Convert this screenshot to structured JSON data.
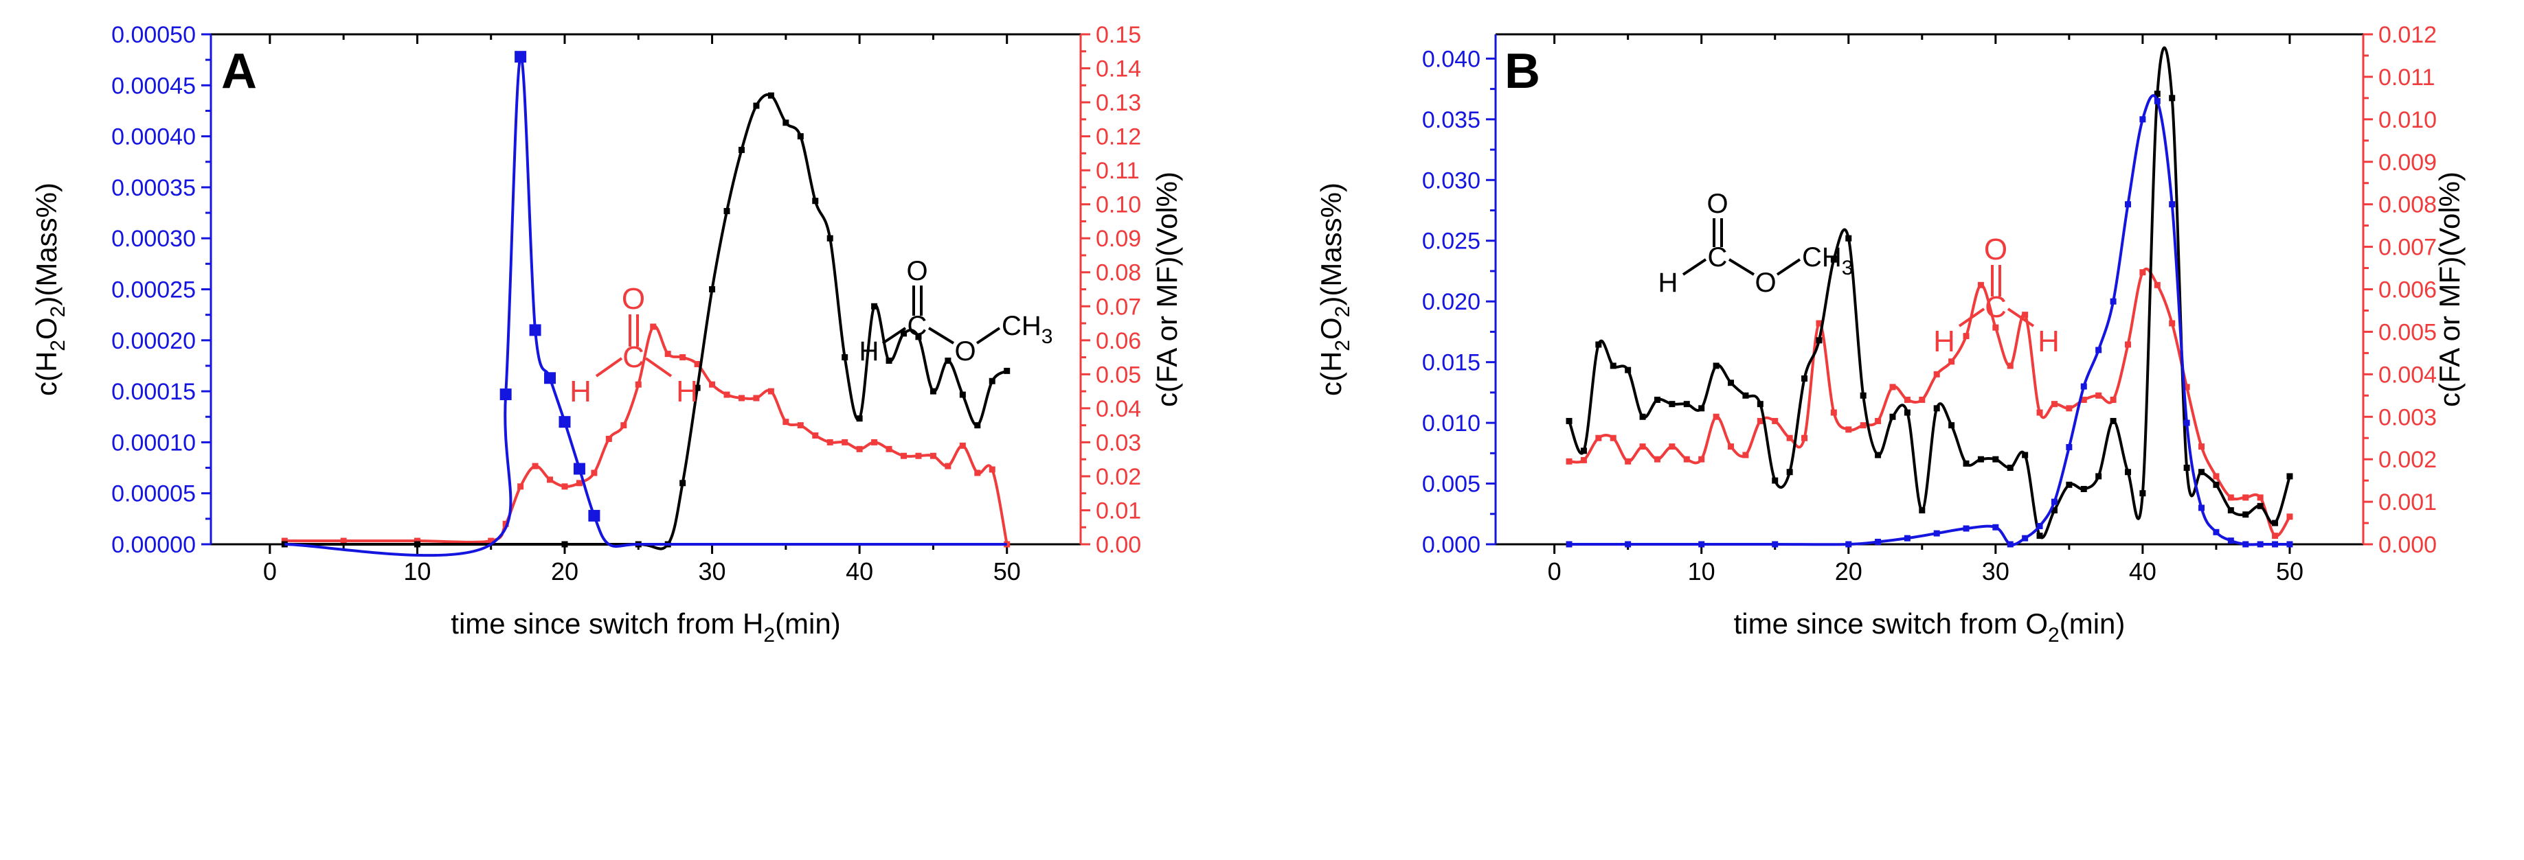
{
  "colors": {
    "h2o2": "#1515e0",
    "fa": "#f03c3c",
    "mf": "#000000",
    "axis": "#000000"
  },
  "chart_data": [
    {
      "panel": "A",
      "type": "line",
      "xlabel": "time since switch from H",
      "xlabel_sub": "2",
      "xlabel_tail": "(min)",
      "ylabel_left": [
        "c(H",
        "2",
        "O",
        "2",
        ")(Mass%)"
      ],
      "ylabel_right": "c(FA or MF)(Vol%)",
      "xlim": [
        -4,
        55
      ],
      "xticks": [
        0,
        10,
        20,
        30,
        40,
        50
      ],
      "xtick_labels": [
        "0",
        "10",
        "20",
        "30",
        "40",
        "50"
      ],
      "ylim_left": [
        0,
        0.0005
      ],
      "yticks_left": [
        0,
        5e-05,
        0.0001,
        0.00015,
        0.0002,
        0.00025,
        0.0003,
        0.00035,
        0.0004,
        0.00045,
        0.0005
      ],
      "ytick_labels_left": [
        "0.00000",
        "0.00005",
        "0.00010",
        "0.00015",
        "0.00020",
        "0.00025",
        "0.00030",
        "0.00035",
        "0.00040",
        "0.00045",
        "0.00050"
      ],
      "ylim_right": [
        0,
        0.15
      ],
      "yticks_right": [
        0,
        0.01,
        0.02,
        0.03,
        0.04,
        0.05,
        0.06,
        0.07,
        0.08,
        0.09,
        0.1,
        0.11,
        0.12,
        0.13,
        0.14,
        0.15
      ],
      "ytick_labels_right": [
        "0.00",
        "0.01",
        "0.02",
        "0.03",
        "0.04",
        "0.05",
        "0.06",
        "0.07",
        "0.08",
        "0.09",
        "0.10",
        "0.11",
        "0.12",
        "0.13",
        "0.14",
        "0.15"
      ],
      "series": [
        {
          "name": "H2O2",
          "axis": "left",
          "color_key": "h2o2",
          "marker": "large-square",
          "x": [
            1,
            15,
            16,
            17,
            18,
            19,
            20,
            21,
            22,
            23,
            25,
            30,
            35,
            40,
            45,
            50
          ],
          "y": [
            0,
            0,
            0.000147,
            0.000478,
            0.00021,
            0.000163,
            0.00012,
            7.4e-05,
            2.8e-05,
            0,
            0,
            0,
            0,
            0,
            0,
            0
          ],
          "marker_x": [
            16,
            17,
            18,
            19,
            20,
            21,
            22,
            31
          ]
        },
        {
          "name": "FA",
          "axis": "right",
          "color_key": "fa",
          "marker": "small-square",
          "x": [
            1,
            5,
            10,
            15,
            16,
            17,
            18,
            19,
            20,
            21,
            22,
            23,
            24,
            25,
            26,
            27,
            28,
            29,
            30,
            31,
            32,
            33,
            34,
            35,
            36,
            37,
            38,
            39,
            40,
            41,
            42,
            43,
            44,
            45,
            46,
            47,
            48,
            49,
            50
          ],
          "y": [
            0.001,
            0.001,
            0.001,
            0.001,
            0.006,
            0.017,
            0.023,
            0.019,
            0.017,
            0.018,
            0.021,
            0.031,
            0.035,
            0.047,
            0.064,
            0.056,
            0.055,
            0.053,
            0.047,
            0.044,
            0.043,
            0.043,
            0.045,
            0.036,
            0.035,
            0.032,
            0.03,
            0.03,
            0.028,
            0.03,
            0.028,
            0.026,
            0.026,
            0.026,
            0.023,
            0.029,
            0.021,
            0.022,
            0.0
          ]
        },
        {
          "name": "MF",
          "axis": "right",
          "color_key": "mf",
          "marker": "small-square",
          "x": [
            1,
            10,
            20,
            25,
            27,
            28,
            29,
            30,
            31,
            32,
            33,
            34,
            35,
            36,
            37,
            38,
            39,
            40,
            41,
            42,
            43,
            44,
            45,
            46,
            47,
            48,
            49,
            50
          ],
          "y": [
            0,
            0,
            0,
            0,
            0.0,
            0.018,
            0.046,
            0.075,
            0.098,
            0.116,
            0.129,
            0.132,
            0.124,
            0.12,
            0.101,
            0.09,
            0.055,
            0.037,
            0.07,
            0.054,
            0.062,
            0.061,
            0.045,
            0.054,
            0.044,
            0.035,
            0.048,
            0.051
          ]
        }
      ],
      "labels": {
        "panel": "A",
        "fa_o": "O",
        "fa_h1": "H",
        "fa_c": "C",
        "fa_h2": "H",
        "mf_o1": "O",
        "mf_h": "H",
        "mf_c": "C",
        "mf_o2": "O",
        "mf_ch": "CH",
        "mf_3": "3"
      }
    },
    {
      "panel": "B",
      "type": "line",
      "xlabel": "time since switch from O",
      "xlabel_sub": "2",
      "xlabel_tail": "(min)",
      "ylabel_left": [
        "c(H",
        "2",
        "O",
        "2",
        ")(Mass%)"
      ],
      "ylabel_right": "c(FA or MF)(Vol%)",
      "xlim": [
        -4,
        55
      ],
      "xticks": [
        0,
        10,
        20,
        30,
        40,
        50
      ],
      "xtick_labels": [
        "0",
        "10",
        "20",
        "30",
        "40",
        "50"
      ],
      "ylim_left": [
        0,
        0.042
      ],
      "yticks_left": [
        0,
        0.005,
        0.01,
        0.015,
        0.02,
        0.025,
        0.03,
        0.035,
        0.04
      ],
      "ytick_labels_left": [
        "0.000",
        "0.005",
        "0.010",
        "0.015",
        "0.020",
        "0.025",
        "0.030",
        "0.035",
        "0.040"
      ],
      "ylim_right": [
        0,
        0.012
      ],
      "yticks_right": [
        0,
        0.001,
        0.002,
        0.003,
        0.004,
        0.005,
        0.006,
        0.007,
        0.008,
        0.009,
        0.01,
        0.011,
        0.012
      ],
      "ytick_labels_right": [
        "0.000",
        "0.001",
        "0.002",
        "0.003",
        "0.004",
        "0.005",
        "0.006",
        "0.007",
        "0.008",
        "0.009",
        "0.010",
        "0.011",
        "0.012"
      ],
      "series": [
        {
          "name": "H2O2",
          "axis": "left",
          "color_key": "h2o2",
          "marker": "small-square",
          "x": [
            1,
            5,
            10,
            15,
            20,
            22,
            24,
            26,
            28,
            30,
            31,
            32,
            33,
            34,
            35,
            36,
            37,
            38,
            39,
            40,
            41,
            42,
            43,
            44,
            45,
            46,
            47,
            48,
            49,
            50
          ],
          "y": [
            0,
            0,
            0,
            0,
            0,
            0.0002,
            0.0005,
            0.0009,
            0.0013,
            0.0014,
            0.0,
            0.0005,
            0.0015,
            0.0035,
            0.008,
            0.013,
            0.016,
            0.02,
            0.028,
            0.035,
            0.0365,
            0.028,
            0.01,
            0.003,
            0.001,
            0.0003,
            0,
            0,
            0,
            0
          ]
        },
        {
          "name": "FA",
          "axis": "right",
          "color_key": "fa",
          "marker": "small-square",
          "x": [
            1,
            2,
            3,
            4,
            5,
            6,
            7,
            8,
            9,
            10,
            11,
            12,
            13,
            14,
            15,
            16,
            17,
            18,
            19,
            20,
            21,
            22,
            23,
            24,
            25,
            26,
            27,
            28,
            29,
            30,
            31,
            32,
            33,
            34,
            35,
            36,
            37,
            38,
            39,
            40,
            41,
            42,
            43,
            44,
            45,
            46,
            47,
            48,
            49,
            50
          ],
          "y": [
            0.00195,
            0.00198,
            0.0025,
            0.0025,
            0.00195,
            0.0023,
            0.002,
            0.0023,
            0.002,
            0.002,
            0.003,
            0.0023,
            0.0021,
            0.0029,
            0.0029,
            0.0025,
            0.0025,
            0.0052,
            0.0031,
            0.0027,
            0.0028,
            0.0029,
            0.0037,
            0.0034,
            0.0034,
            0.004,
            0.0043,
            0.0049,
            0.0061,
            0.0051,
            0.0042,
            0.0054,
            0.0031,
            0.0033,
            0.0032,
            0.0034,
            0.0035,
            0.0034,
            0.0047,
            0.0064,
            0.0061,
            0.0052,
            0.0037,
            0.0023,
            0.0016,
            0.0011,
            0.0011,
            0.0011,
            0.0002,
            0.00065
          ]
        },
        {
          "name": "MF",
          "axis": "right",
          "color_key": "mf",
          "marker": "small-square",
          "x": [
            1,
            2,
            3,
            4,
            5,
            6,
            7,
            8,
            9,
            10,
            11,
            12,
            13,
            14,
            15,
            16,
            17,
            18,
            19,
            20,
            21,
            22,
            23,
            24,
            25,
            26,
            27,
            28,
            29,
            30,
            31,
            32,
            33,
            34,
            35,
            36,
            37,
            38,
            39,
            40,
            41,
            42,
            43,
            44,
            45,
            46,
            47,
            48,
            49,
            50
          ],
          "y": [
            0.0029,
            0.0022,
            0.0047,
            0.0042,
            0.0041,
            0.003,
            0.0034,
            0.0033,
            0.0033,
            0.0032,
            0.0042,
            0.0038,
            0.0035,
            0.0033,
            0.0015,
            0.0017,
            0.0039,
            0.0048,
            0.0067,
            0.0072,
            0.0035,
            0.0021,
            0.003,
            0.0031,
            0.0008,
            0.0032,
            0.0028,
            0.0019,
            0.002,
            0.002,
            0.0018,
            0.0021,
            0.0002,
            0.0008,
            0.0014,
            0.0013,
            0.0016,
            0.0029,
            0.0017,
            0.0012,
            0.0106,
            0.0105,
            0.0018,
            0.0017,
            0.0014,
            0.0008,
            0.0007,
            0.0009,
            0.0005,
            0.0016
          ]
        }
      ],
      "labels": {
        "panel": "B",
        "fa_o": "O",
        "fa_h1": "H",
        "fa_c": "C",
        "fa_h2": "H",
        "mf_o1": "O",
        "mf_h": "H",
        "mf_c": "C",
        "mf_o2": "O",
        "mf_ch": "CH",
        "mf_3": "3"
      }
    }
  ]
}
